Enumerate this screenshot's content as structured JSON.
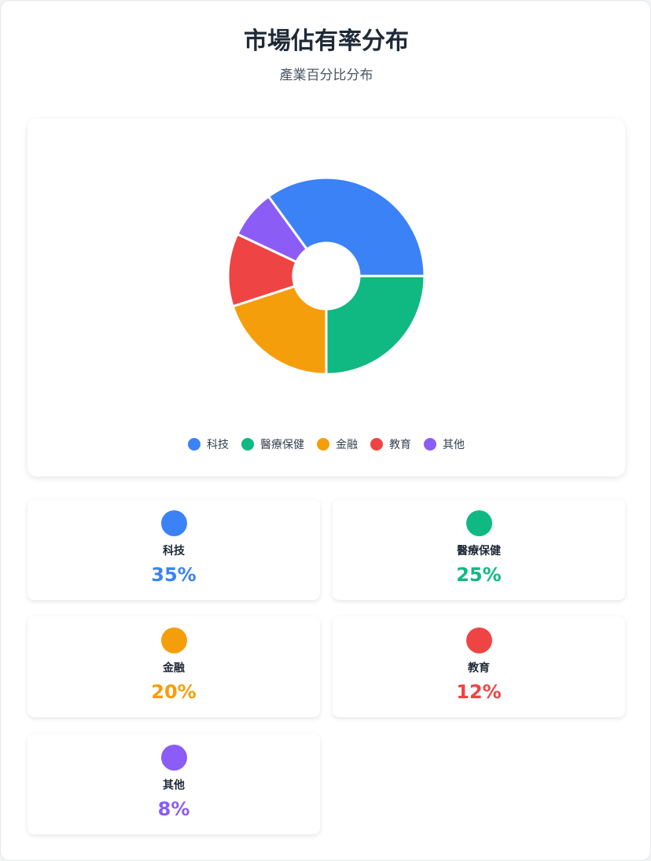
{
  "header": {
    "title": "市場佔有率分布",
    "subtitle": "產業百分比分布"
  },
  "chart_data": {
    "type": "pie",
    "donut": true,
    "categories": [
      "科技",
      "醫療保健",
      "金融",
      "教育",
      "其他"
    ],
    "values": [
      35,
      25,
      20,
      12,
      8
    ],
    "colors": [
      "#3b82f6",
      "#10b981",
      "#f59e0b",
      "#ef4444",
      "#8b5cf6"
    ],
    "legend_position": "bottom"
  },
  "stats": [
    {
      "label": "科技",
      "value": "35%",
      "color": "#3b82f6"
    },
    {
      "label": "醫療保健",
      "value": "25%",
      "color": "#10b981"
    },
    {
      "label": "金融",
      "value": "20%",
      "color": "#f59e0b"
    },
    {
      "label": "教育",
      "value": "12%",
      "color": "#ef4444"
    },
    {
      "label": "其他",
      "value": "8%",
      "color": "#8b5cf6"
    }
  ]
}
